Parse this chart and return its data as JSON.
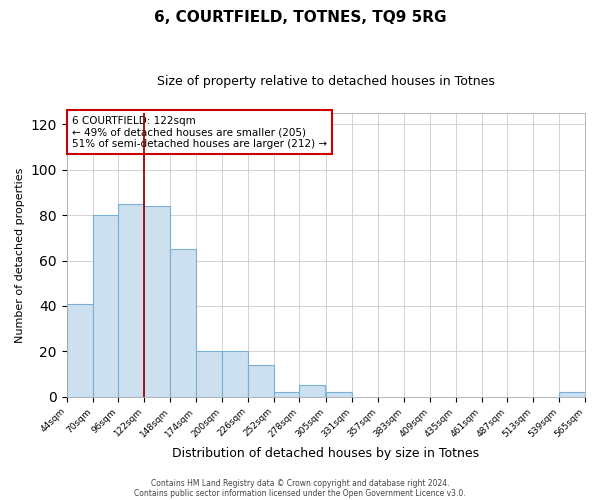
{
  "title": "6, COURTFIELD, TOTNES, TQ9 5RG",
  "subtitle": "Size of property relative to detached houses in Totnes",
  "xlabel": "Distribution of detached houses by size in Totnes",
  "ylabel": "Number of detached properties",
  "bar_color": "#cce0f0",
  "bar_edge_color": "#7ab0d4",
  "bin_labels": [
    "44sqm",
    "70sqm",
    "96sqm",
    "122sqm",
    "148sqm",
    "174sqm",
    "200sqm",
    "226sqm",
    "252sqm",
    "278sqm",
    "305sqm",
    "331sqm",
    "357sqm",
    "383sqm",
    "409sqm",
    "435sqm",
    "461sqm",
    "487sqm",
    "513sqm",
    "539sqm",
    "565sqm"
  ],
  "bin_starts": [
    44,
    70,
    96,
    122,
    148,
    174,
    200,
    226,
    252,
    278,
    305,
    331,
    357,
    383,
    409,
    435,
    461,
    487,
    513,
    539
  ],
  "bar_heights": [
    41,
    80,
    85,
    84,
    65,
    20,
    20,
    14,
    2,
    5,
    2,
    0,
    0,
    0,
    0,
    0,
    0,
    0,
    0,
    2
  ],
  "bin_width": 26,
  "vline_x": 122,
  "vline_color": "#aa0000",
  "ylim": [
    0,
    125
  ],
  "xlim": [
    44,
    565
  ],
  "yticks": [
    0,
    20,
    40,
    60,
    80,
    100,
    120
  ],
  "tick_positions": [
    44,
    70,
    96,
    122,
    148,
    174,
    200,
    226,
    252,
    278,
    305,
    331,
    357,
    383,
    409,
    435,
    461,
    487,
    513,
    539,
    565
  ],
  "annotation_title": "6 COURTFIELD: 122sqm",
  "annotation_line1": "← 49% of detached houses are smaller (205)",
  "annotation_line2": "51% of semi-detached houses are larger (212) →",
  "annotation_box_color": "#ffffff",
  "annotation_box_edge": "#cc0000",
  "footer1": "Contains HM Land Registry data © Crown copyright and database right 2024.",
  "footer2": "Contains public sector information licensed under the Open Government Licence v3.0.",
  "background_color": "#ffffff",
  "grid_color": "#cccccc",
  "title_fontsize": 11,
  "subtitle_fontsize": 9,
  "ylabel_fontsize": 8,
  "xlabel_fontsize": 9
}
